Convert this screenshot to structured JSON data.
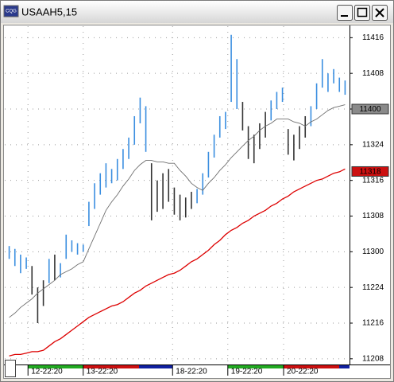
{
  "window": {
    "title": "USAAH5,15"
  },
  "chart_data": {
    "type": "range-bar",
    "up_color": "#3a8ee0",
    "down_color": "#333333",
    "high": [
      113.04,
      113.02,
      112.98,
      112.96,
      112.9,
      112.75,
      112.8,
      112.95,
      112.98,
      112.92,
      113.12,
      113.08,
      113.06,
      113.05,
      113.35,
      113.48,
      113.55,
      113.62,
      113.58,
      113.65,
      113.72,
      113.8,
      113.95,
      114.08,
      114.02,
      113.62,
      113.5,
      113.55,
      113.58,
      113.45,
      113.4,
      113.38,
      113.42,
      113.44,
      113.55,
      113.7,
      113.82,
      113.95,
      113.98,
      114.52,
      114.35,
      114.05,
      113.88,
      113.82,
      113.9,
      113.98,
      114.06,
      114.12,
      114.15,
      113.86,
      113.82,
      113.88,
      113.95,
      114.02,
      114.18,
      114.35,
      114.25,
      114.28,
      114.22,
      114.2
    ],
    "low": [
      112.95,
      112.9,
      112.85,
      112.88,
      112.7,
      112.5,
      112.62,
      112.78,
      112.8,
      112.82,
      112.95,
      113.0,
      112.98,
      113.0,
      113.18,
      113.3,
      113.4,
      113.45,
      113.48,
      113.5,
      113.58,
      113.65,
      113.75,
      113.9,
      113.7,
      113.22,
      113.28,
      113.3,
      113.35,
      113.26,
      113.22,
      113.24,
      113.3,
      113.34,
      113.4,
      113.52,
      113.66,
      113.8,
      113.86,
      114.05,
      114.0,
      113.85,
      113.65,
      113.62,
      113.72,
      113.8,
      113.92,
      114.0,
      114.05,
      113.68,
      113.64,
      113.72,
      113.8,
      113.88,
      114.0,
      114.15,
      114.12,
      114.18,
      114.12,
      114.1
    ],
    "up": [
      true,
      true,
      true,
      true,
      false,
      false,
      false,
      true,
      false,
      true,
      true,
      true,
      true,
      true,
      true,
      true,
      true,
      true,
      true,
      true,
      true,
      true,
      true,
      true,
      true,
      false,
      false,
      false,
      false,
      false,
      false,
      false,
      false,
      true,
      true,
      true,
      true,
      true,
      true,
      true,
      true,
      false,
      false,
      false,
      false,
      false,
      true,
      true,
      true,
      false,
      false,
      false,
      false,
      true,
      true,
      true,
      true,
      true,
      true,
      true
    ],
    "series": [
      {
        "color": "#6e6e6e",
        "values": [
          112.54,
          112.57,
          112.61,
          112.64,
          112.67,
          112.71,
          112.74,
          112.77,
          112.8,
          112.84,
          112.86,
          112.88,
          112.91,
          112.93,
          113.02,
          113.11,
          113.2,
          113.29,
          113.35,
          113.4,
          113.46,
          113.51,
          113.57,
          113.61,
          113.64,
          113.64,
          113.63,
          113.63,
          113.62,
          113.62,
          113.57,
          113.53,
          113.48,
          113.45,
          113.43,
          113.48,
          113.52,
          113.57,
          113.61,
          113.66,
          113.7,
          113.74,
          113.78,
          113.81,
          113.85,
          113.88,
          113.9,
          113.93,
          113.93,
          113.93,
          113.91,
          113.9,
          113.88,
          113.91,
          113.93,
          113.96,
          113.99,
          114.01,
          114.02,
          114.03
        ]
      },
      {
        "color": "#dd0000",
        "values": [
          112.27,
          112.28,
          112.28,
          112.29,
          112.3,
          112.3,
          112.31,
          112.34,
          112.37,
          112.39,
          112.42,
          112.45,
          112.48,
          112.51,
          112.54,
          112.56,
          112.58,
          112.6,
          112.62,
          112.63,
          112.65,
          112.68,
          112.71,
          112.73,
          112.76,
          112.78,
          112.8,
          112.82,
          112.84,
          112.85,
          112.87,
          112.9,
          112.93,
          112.95,
          112.98,
          113.01,
          113.05,
          113.08,
          113.12,
          113.15,
          113.17,
          113.2,
          113.22,
          113.25,
          113.27,
          113.29,
          113.32,
          113.34,
          113.37,
          113.39,
          113.42,
          113.44,
          113.46,
          113.48,
          113.5,
          113.51,
          113.53,
          113.55,
          113.56,
          113.58
        ]
      }
    ],
    "xlim": [
      0,
      60
    ],
    "xticks": [
      {
        "value": 3.8,
        "label": "12-22:20"
      },
      {
        "value": 13.5,
        "label": "13-22:20"
      },
      {
        "value": 29.2,
        "label": "18-22:20"
      },
      {
        "value": 38.9,
        "label": "19-22:20"
      },
      {
        "value": 48.7,
        "label": "20-22:20"
      }
    ],
    "ylim": [
      112.21,
      114.58
    ],
    "yticks": [
      {
        "value": 114.5,
        "label": "11416"
      },
      {
        "value": 114.25,
        "label": "11408"
      },
      {
        "value": 114.0,
        "label": "11400"
      },
      {
        "value": 113.75,
        "label": "11324"
      },
      {
        "value": 113.5,
        "label": "11316"
      },
      {
        "value": 113.25,
        "label": "11308"
      },
      {
        "value": 113.0,
        "label": "11300"
      },
      {
        "value": 112.75,
        "label": "11224"
      },
      {
        "value": 112.5,
        "label": "11216"
      },
      {
        "value": 112.25,
        "label": "11208"
      }
    ],
    "grid": true,
    "markers": [
      {
        "value": 114.0,
        "label": "11400",
        "color": "#8a8a8a",
        "text_color": "#000000"
      },
      {
        "value": 113.5625,
        "label": "11318",
        "color": "#cc1010",
        "text_color": "#ffffff"
      }
    ]
  }
}
